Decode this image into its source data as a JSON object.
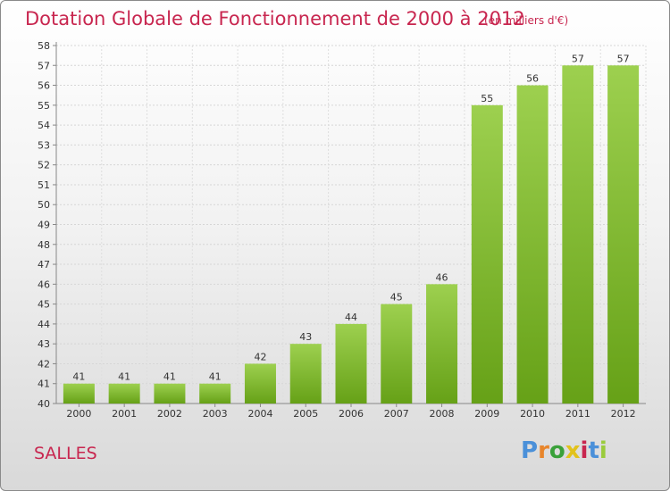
{
  "chart_data": {
    "type": "bar",
    "title": "Dotation Globale de Fonctionnement de 2000 à 2012",
    "subtitle": "(en milliers d'€)",
    "categories": [
      "2000",
      "2001",
      "2002",
      "2003",
      "2004",
      "2005",
      "2006",
      "2007",
      "2008",
      "2009",
      "2010",
      "2011",
      "2012"
    ],
    "values": [
      41,
      41,
      41,
      41,
      42,
      43,
      44,
      45,
      46,
      55,
      56,
      57,
      57
    ],
    "data_labels": [
      "41",
      "41",
      "41",
      "41",
      "42",
      "43",
      "44",
      "45",
      "46",
      "55",
      "56",
      "57",
      "57"
    ],
    "y_ticks": [
      "40",
      "41",
      "42",
      "43",
      "44",
      "45",
      "46",
      "47",
      "48",
      "49",
      "50",
      "51",
      "52",
      "53",
      "54",
      "55",
      "56",
      "57",
      "58"
    ],
    "ylim": [
      40,
      58
    ],
    "xlabel": "",
    "ylabel": "",
    "grid": true,
    "bar_color_top": "#9dd04f",
    "bar_color_bottom": "#66a117",
    "text_color": "#c8264f"
  },
  "footer": {
    "commune": "SALLES",
    "logo_text": "Proxiti",
    "logo_colors": [
      "#4a90d9",
      "#e8852b",
      "#3aa13a",
      "#e2c21c",
      "#c8264f",
      "#4a90d9",
      "#9acb3c"
    ]
  }
}
